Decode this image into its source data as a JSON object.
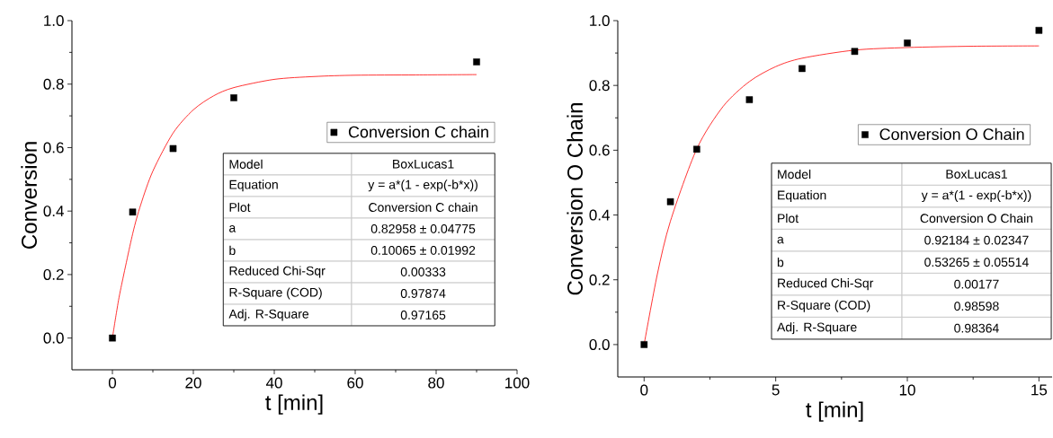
{
  "chart_data": [
    {
      "type": "scatter",
      "xlabel": "t [min]",
      "ylabel": "Conversion",
      "xlim": [
        -10,
        100
      ],
      "ylim": [
        -0.1,
        1.0
      ],
      "xticks": [
        0,
        20,
        40,
        60,
        80,
        100
      ],
      "yticks": [
        {
          "value": 0,
          "label": "0.0"
        },
        {
          "value": 0.2,
          "label": "0.2"
        },
        {
          "value": 0.4,
          "label": "0.4"
        },
        {
          "value": 0.6,
          "label": "0.6"
        },
        {
          "value": 0.8,
          "label": "0.8"
        },
        {
          "value": 1.0,
          "label": "1.0"
        }
      ],
      "grid": false,
      "legend": "right",
      "series": [
        {
          "name": "Conversion C chain",
          "color": "#000000",
          "marker": "square",
          "x": [
            0,
            5,
            15,
            30,
            90
          ],
          "values": [
            0,
            0.397,
            0.597,
            0.757,
            0.87
          ]
        },
        {
          "type": "line",
          "color": "#ff0000",
          "marker": "none",
          "x": [
            0,
            1,
            2,
            5,
            7,
            10,
            15,
            20,
            25,
            30,
            40,
            50,
            60,
            75,
            90
          ],
          "values": [
            0,
            0.08,
            0.151,
            0.328,
            0.42,
            0.526,
            0.646,
            0.719,
            0.763,
            0.789,
            0.815,
            0.824,
            0.828,
            0.829,
            0.83
          ]
        }
      ],
      "annotations": [
        "Model",
        "BoxLucas1",
        "Equation",
        "y = a*(1 - exp(-b*x))",
        "Plot",
        "Conversion C chain",
        "a",
        "0.82958 ± 0.04775",
        "b",
        "0.10065 ± 0.01992",
        "Reduced Chi-Sqr",
        "0.00333",
        "R-Square (COD)",
        "0.97874",
        "Adj. R-Square",
        "0.97165"
      ]
    },
    {
      "type": "scatter",
      "xlabel": "t [min]",
      "ylabel": "Conversion O Chain",
      "xlim": [
        -1,
        15.5
      ],
      "ylim": [
        -0.1,
        1.0
      ],
      "xticks": [
        0,
        5,
        10,
        15
      ],
      "yticks": [
        {
          "value": 0,
          "label": "0.0"
        },
        {
          "value": 0.2,
          "label": "0.2"
        },
        {
          "value": 0.4,
          "label": "0.4"
        },
        {
          "value": 0.6,
          "label": "0.6"
        },
        {
          "value": 0.8,
          "label": "0.8"
        },
        {
          "value": 1.0,
          "label": "1.0"
        }
      ],
      "grid": false,
      "legend": "right",
      "series": [
        {
          "name": "Conversion O Chain",
          "color": "#000000",
          "marker": "square",
          "x": [
            0,
            1,
            2,
            4,
            6,
            8,
            10,
            15
          ],
          "values": [
            0,
            0.441,
            0.603,
            0.756,
            0.852,
            0.905,
            0.931,
            0.97
          ]
        },
        {
          "type": "line",
          "color": "#ff0000",
          "marker": "none",
          "x": [
            0,
            0.5,
            1,
            2,
            3,
            4,
            5,
            6,
            8,
            10,
            12.5,
            15
          ],
          "values": [
            0,
            0.216,
            0.381,
            0.604,
            0.735,
            0.812,
            0.858,
            0.884,
            0.909,
            0.917,
            0.921,
            0.922
          ]
        }
      ],
      "annotations": [
        "Model",
        "BoxLucas1",
        "Equation",
        "y = a*(1 - exp(-b*x))",
        "Plot",
        "Conversion O Chain",
        "a",
        "0.92184 ± 0.02347",
        "b",
        "0.53265 ± 0.05514",
        "Reduced Chi-Sqr",
        "0.00177",
        "R-Square (COD)",
        "0.98598",
        "Adj. R-Square",
        "0.98364"
      ]
    }
  ]
}
